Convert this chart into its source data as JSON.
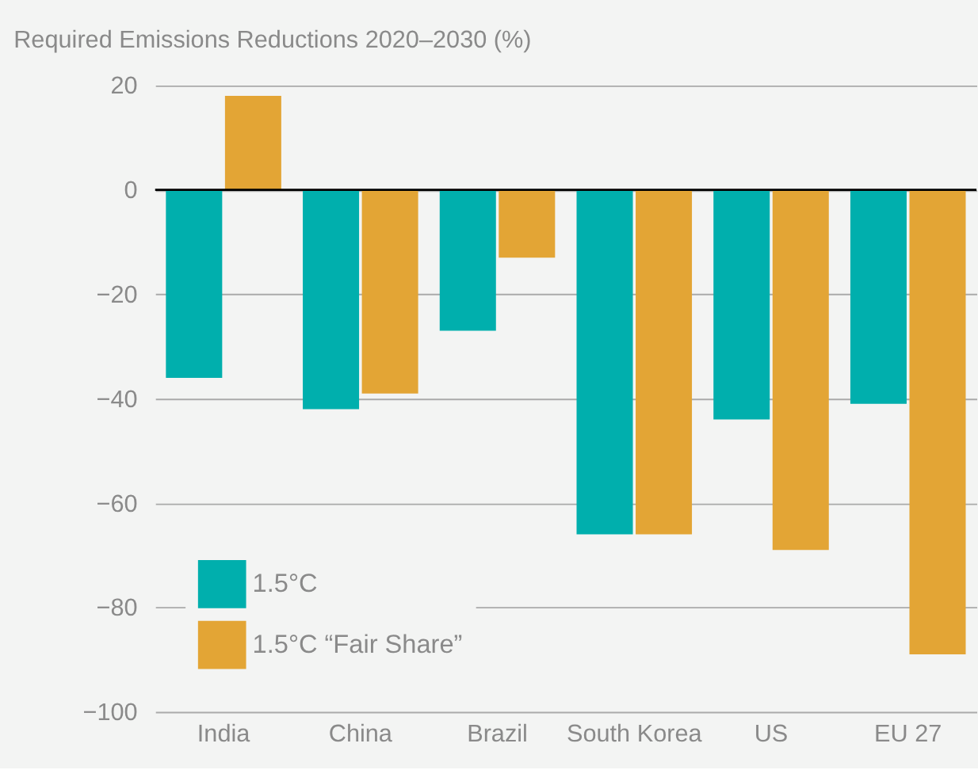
{
  "chart_data": {
    "type": "bar",
    "title": "Required Emissions Reductions 2020–2030 (%)",
    "categories": [
      "India",
      "China",
      "Brazil",
      "South Korea",
      "US",
      "EU 27"
    ],
    "series": [
      {
        "name": "1.5°C",
        "color": "#00afad",
        "values": [
          -36,
          -42,
          -27,
          -66,
          -44,
          -41
        ]
      },
      {
        "name": "1.5°C “Fair Share”",
        "color": "#e3a535",
        "values": [
          18,
          -39,
          -13,
          -66,
          -69,
          -89
        ]
      }
    ],
    "ylim": [
      -100,
      20
    ],
    "yticks": [
      -100,
      -80,
      -60,
      -40,
      -20,
      0,
      20
    ],
    "ref_lines": [
      {
        "axis": "y",
        "value": 0,
        "color": "#000000"
      }
    ],
    "grid": "y",
    "legend": "bottom left"
  }
}
